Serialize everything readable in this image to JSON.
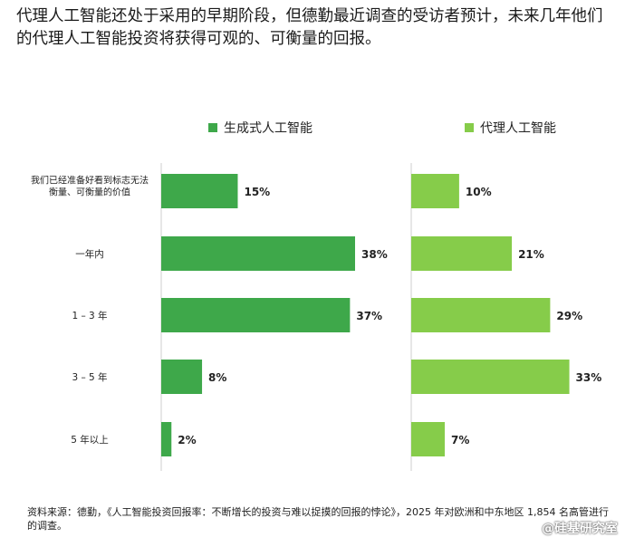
{
  "title": "代理人工智能还处于采用的早期阶段，但德勤最近调查的受访者预计，未来几年他们的代理人工智能投资将获得可观的、可衡量的回报。",
  "source": "资料来源：德勤，《人工智能投资回报率：不断增长的投资与难以捉摸的回报的悖论》，2025 年对欧洲和中东地区 1,854 名高管进行的调查。",
  "watermark": "@硅基研究室",
  "chart_data": {
    "type": "bar",
    "orientation": "horizontal",
    "layout": "two panels side by side",
    "categories": [
      "我们已经准备好看到标志无法衡量、可衡量的价值",
      "一年内",
      "1 – 3 年",
      "3 – 5 年",
      "5 年以上"
    ],
    "category_lines": [
      [
        "我们已经准备好看到标志无法",
        "衡量、可衡量的价值"
      ],
      [
        "一年内"
      ],
      [
        "1 – 3 年"
      ],
      [
        "3 – 5 年"
      ],
      [
        "5 年以上"
      ]
    ],
    "series": [
      {
        "name": "生成式人工智能",
        "color": "#3ea84a",
        "values": [
          15,
          38,
          37,
          8,
          2
        ]
      },
      {
        "name": "代理人工智能",
        "color": "#86cc4a",
        "values": [
          10,
          21,
          29,
          33,
          7
        ]
      }
    ],
    "value_suffix": "%",
    "xlim": [
      0,
      38
    ],
    "grid": false
  }
}
